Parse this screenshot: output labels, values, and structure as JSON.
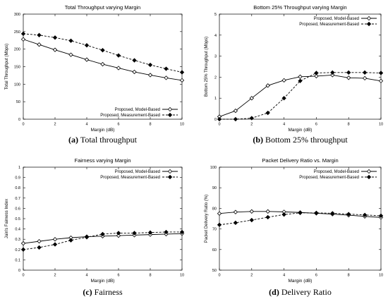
{
  "chart_data": [
    {
      "type": "line",
      "title": "Total Throughput varying Margin",
      "xlabel": "Margin (dB)",
      "ylabel": "Total Throughput (Mbps)",
      "xlim": [
        0,
        10
      ],
      "ylim": [
        0,
        300
      ],
      "xticks": [
        "0",
        "2",
        "4",
        "6",
        "8",
        "10"
      ],
      "yticks": [
        "0",
        "50",
        "100",
        "150",
        "200",
        "250",
        "300"
      ],
      "grid": false,
      "legend_position": "bottom-right",
      "x": [
        0,
        1,
        2,
        3,
        4,
        5,
        6,
        7,
        8,
        9,
        10
      ],
      "series": [
        {
          "name": "Proposed, Model-Based",
          "marker": "open-diamond",
          "style": "solid",
          "values": [
            228,
            213,
            198,
            184,
            170,
            157,
            146,
            135,
            126,
            118,
            111
          ]
        },
        {
          "name": "Proposed, Measurement-Based",
          "marker": "filled-diamond",
          "style": "dashed",
          "values": [
            244,
            240,
            233,
            224,
            211,
            197,
            182,
            168,
            155,
            144,
            134
          ]
        }
      ],
      "caption_label": "(a)",
      "caption_text": "Total throughput"
    },
    {
      "type": "line",
      "title": "Bottom 25% Throughput varying Margin",
      "xlabel": "Margin (dB)",
      "ylabel": "Bottom 25% Throughput (Mbps)",
      "xlim": [
        0,
        10
      ],
      "ylim": [
        0,
        5
      ],
      "xticks": [
        "0",
        "2",
        "4",
        "6",
        "8",
        "10"
      ],
      "yticks": [
        "0",
        "1",
        "2",
        "3",
        "4",
        "5"
      ],
      "grid": false,
      "legend_position": "top-right",
      "x": [
        0,
        1,
        2,
        3,
        4,
        5,
        6,
        7,
        8,
        9,
        10
      ],
      "series": [
        {
          "name": "Proposed, Model-Based",
          "marker": "open-diamond",
          "style": "solid",
          "values": [
            0.12,
            0.4,
            1.0,
            1.6,
            1.85,
            2.02,
            2.05,
            2.1,
            1.97,
            1.95,
            1.82
          ]
        },
        {
          "name": "Proposed, Measurement-Based",
          "marker": "filled-diamond",
          "style": "dashed",
          "values": [
            0.0,
            0.0,
            0.05,
            0.3,
            1.0,
            1.82,
            2.2,
            2.22,
            2.22,
            2.22,
            2.2
          ]
        }
      ],
      "caption_label": "(b)",
      "caption_text": "Bottom 25% throughput"
    },
    {
      "type": "line",
      "title": "Fairness varying Margin",
      "xlabel": "Margin (dB)",
      "ylabel": "Jain's Fairness Index",
      "xlim": [
        0,
        10
      ],
      "ylim": [
        0,
        1
      ],
      "xticks": [
        "0",
        "2",
        "4",
        "6",
        "8",
        "10"
      ],
      "yticks": [
        "0",
        "0.1",
        "0.2",
        "0.3",
        "0.4",
        "0.5",
        "0.6",
        "0.7",
        "0.8",
        "0.9",
        "1"
      ],
      "grid": false,
      "legend_position": "top-right",
      "x": [
        0,
        1,
        2,
        3,
        4,
        5,
        6,
        7,
        8,
        9,
        10
      ],
      "series": [
        {
          "name": "Proposed, Model-Based",
          "marker": "open-diamond",
          "style": "solid",
          "values": [
            0.26,
            0.28,
            0.3,
            0.315,
            0.325,
            0.33,
            0.335,
            0.34,
            0.345,
            0.35,
            0.355
          ]
        },
        {
          "name": "Proposed, Measurement-Based",
          "marker": "filled-diamond",
          "style": "dashed",
          "values": [
            0.2,
            0.22,
            0.25,
            0.29,
            0.32,
            0.35,
            0.36,
            0.36,
            0.365,
            0.37,
            0.37
          ]
        }
      ],
      "caption_label": "(c)",
      "caption_text": "Fairness"
    },
    {
      "type": "line",
      "title": "Packet Delivery Ratio vs. Margin",
      "xlabel": "Margin (dB)",
      "ylabel": "Packet Delivery Ratio (%)",
      "xlim": [
        0,
        10
      ],
      "ylim": [
        50,
        100
      ],
      "xticks": [
        "0",
        "2",
        "4",
        "6",
        "8",
        "10"
      ],
      "yticks": [
        "50",
        "60",
        "70",
        "80",
        "90",
        "100"
      ],
      "grid": false,
      "legend_position": "top-right",
      "x": [
        0,
        1,
        2,
        3,
        4,
        5,
        6,
        7,
        8,
        9,
        10
      ],
      "series": [
        {
          "name": "Proposed, Model-Based",
          "marker": "open-diamond",
          "style": "solid",
          "values": [
            77.5,
            78.2,
            78.5,
            78.5,
            78.3,
            78.0,
            77.6,
            77.2,
            76.7,
            76.1,
            75.6
          ]
        },
        {
          "name": "Proposed, Measurement-Based",
          "marker": "filled-diamond",
          "style": "dashed",
          "values": [
            72.0,
            73.0,
            74.3,
            75.7,
            77.0,
            77.8,
            77.8,
            77.6,
            77.2,
            76.8,
            76.4
          ]
        }
      ],
      "caption_label": "(d)",
      "caption_text": "Delivery Ratio"
    }
  ]
}
